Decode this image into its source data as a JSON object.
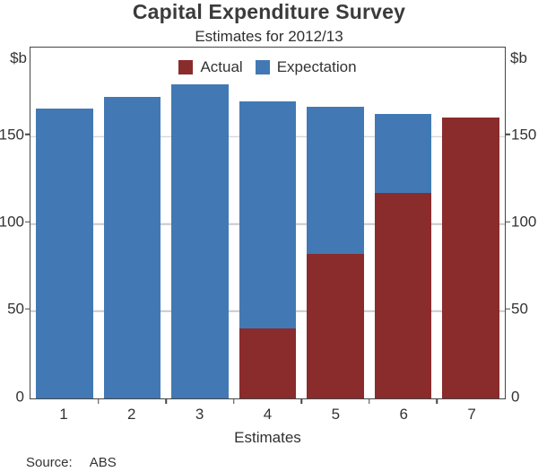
{
  "header": {
    "title": "Capital Expenditure Survey",
    "subtitle": "Estimates for 2012/13"
  },
  "axes": {
    "unit_left": "$b",
    "unit_right": "$b",
    "xlabel": "Estimates"
  },
  "legend": [
    {
      "label": "Actual",
      "color": "#8a2b2c"
    },
    {
      "label": "Expectation",
      "color": "#4279b4"
    }
  ],
  "source": {
    "label": "Source:",
    "value": "ABS"
  },
  "chart_data": {
    "type": "bar",
    "stacked": true,
    "title": "Capital Expenditure Survey",
    "subtitle": "Estimates for 2012/13",
    "xlabel": "Estimates",
    "ylabel": "$b",
    "ylim": [
      0,
      200
    ],
    "yticks": [
      0,
      50,
      100,
      150
    ],
    "grid": "horizontal",
    "legend_position": "top-center",
    "categories": [
      "1",
      "2",
      "3",
      "4",
      "5",
      "6",
      "7"
    ],
    "series": [
      {
        "name": "Actual",
        "color": "#8a2b2c",
        "values": [
          null,
          null,
          null,
          40,
          83,
          118,
          161
        ]
      },
      {
        "name": "Expectation",
        "color": "#4279b4",
        "values": [
          166,
          173,
          180,
          170,
          167,
          163,
          null
        ]
      }
    ]
  }
}
